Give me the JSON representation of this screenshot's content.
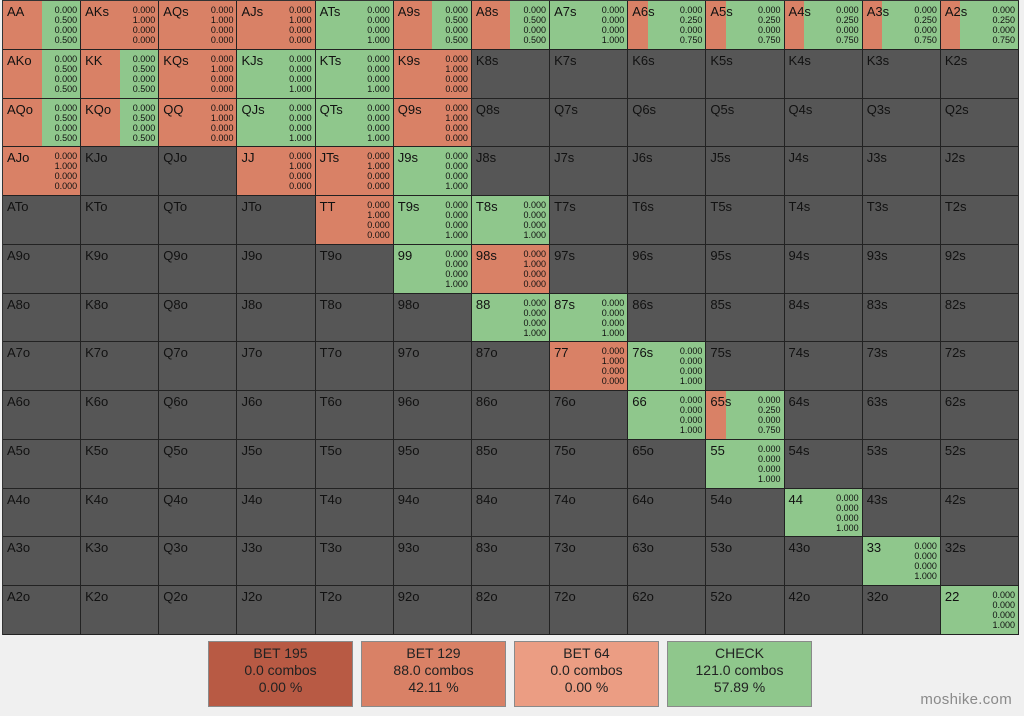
{
  "actions": [
    {
      "label": "BET 195",
      "combos": "0.0 combos",
      "pct": "0.00 %",
      "color": "#b85a44"
    },
    {
      "label": "BET 129",
      "combos": "88.0 combos",
      "pct": "42.11 %",
      "color": "#d98166"
    },
    {
      "label": "BET 64",
      "combos": "0.0 combos",
      "pct": "0.00 %",
      "color": "#eb9d83"
    },
    {
      "label": "CHECK",
      "combos": "121.0 combos",
      "pct": "57.89 %",
      "color": "#8fc78c"
    }
  ],
  "default_cell_color": "#565656",
  "watermark": "moshike.com",
  "grid": [
    [
      {
        "hand": "AA",
        "f": [
          "0.000",
          "0.500",
          "0.000",
          "0.500"
        ]
      },
      {
        "hand": "AKs",
        "f": [
          "0.000",
          "1.000",
          "0.000",
          "0.000"
        ]
      },
      {
        "hand": "AQs",
        "f": [
          "0.000",
          "1.000",
          "0.000",
          "0.000"
        ]
      },
      {
        "hand": "AJs",
        "f": [
          "0.000",
          "1.000",
          "0.000",
          "0.000"
        ]
      },
      {
        "hand": "ATs",
        "f": [
          "0.000",
          "0.000",
          "0.000",
          "1.000"
        ]
      },
      {
        "hand": "A9s",
        "f": [
          "0.000",
          "0.500",
          "0.000",
          "0.500"
        ]
      },
      {
        "hand": "A8s",
        "f": [
          "0.000",
          "0.500",
          "0.000",
          "0.500"
        ]
      },
      {
        "hand": "A7s",
        "f": [
          "0.000",
          "0.000",
          "0.000",
          "1.000"
        ]
      },
      {
        "hand": "A6s",
        "f": [
          "0.000",
          "0.250",
          "0.000",
          "0.750"
        ]
      },
      {
        "hand": "A5s",
        "f": [
          "0.000",
          "0.250",
          "0.000",
          "0.750"
        ]
      },
      {
        "hand": "A4s",
        "f": [
          "0.000",
          "0.250",
          "0.000",
          "0.750"
        ]
      },
      {
        "hand": "A3s",
        "f": [
          "0.000",
          "0.250",
          "0.000",
          "0.750"
        ]
      },
      {
        "hand": "A2s",
        "f": [
          "0.000",
          "0.250",
          "0.000",
          "0.750"
        ]
      }
    ],
    [
      {
        "hand": "AKo",
        "f": [
          "0.000",
          "0.500",
          "0.000",
          "0.500"
        ]
      },
      {
        "hand": "KK",
        "f": [
          "0.000",
          "0.500",
          "0.000",
          "0.500"
        ]
      },
      {
        "hand": "KQs",
        "f": [
          "0.000",
          "1.000",
          "0.000",
          "0.000"
        ]
      },
      {
        "hand": "KJs",
        "f": [
          "0.000",
          "0.000",
          "0.000",
          "1.000"
        ]
      },
      {
        "hand": "KTs",
        "f": [
          "0.000",
          "0.000",
          "0.000",
          "1.000"
        ]
      },
      {
        "hand": "K9s",
        "f": [
          "0.000",
          "1.000",
          "0.000",
          "0.000"
        ]
      },
      {
        "hand": "K8s"
      },
      {
        "hand": "K7s"
      },
      {
        "hand": "K6s"
      },
      {
        "hand": "K5s"
      },
      {
        "hand": "K4s"
      },
      {
        "hand": "K3s"
      },
      {
        "hand": "K2s"
      }
    ],
    [
      {
        "hand": "AQo",
        "f": [
          "0.000",
          "0.500",
          "0.000",
          "0.500"
        ]
      },
      {
        "hand": "KQo",
        "f": [
          "0.000",
          "0.500",
          "0.000",
          "0.500"
        ]
      },
      {
        "hand": "QQ",
        "f": [
          "0.000",
          "1.000",
          "0.000",
          "0.000"
        ]
      },
      {
        "hand": "QJs",
        "f": [
          "0.000",
          "0.000",
          "0.000",
          "1.000"
        ]
      },
      {
        "hand": "QTs",
        "f": [
          "0.000",
          "0.000",
          "0.000",
          "1.000"
        ]
      },
      {
        "hand": "Q9s",
        "f": [
          "0.000",
          "1.000",
          "0.000",
          "0.000"
        ]
      },
      {
        "hand": "Q8s"
      },
      {
        "hand": "Q7s"
      },
      {
        "hand": "Q6s"
      },
      {
        "hand": "Q5s"
      },
      {
        "hand": "Q4s"
      },
      {
        "hand": "Q3s"
      },
      {
        "hand": "Q2s"
      }
    ],
    [
      {
        "hand": "AJo",
        "f": [
          "0.000",
          "1.000",
          "0.000",
          "0.000"
        ]
      },
      {
        "hand": "KJo"
      },
      {
        "hand": "QJo"
      },
      {
        "hand": "JJ",
        "f": [
          "0.000",
          "1.000",
          "0.000",
          "0.000"
        ]
      },
      {
        "hand": "JTs",
        "f": [
          "0.000",
          "1.000",
          "0.000",
          "0.000"
        ]
      },
      {
        "hand": "J9s",
        "f": [
          "0.000",
          "0.000",
          "0.000",
          "1.000"
        ]
      },
      {
        "hand": "J8s"
      },
      {
        "hand": "J7s"
      },
      {
        "hand": "J6s"
      },
      {
        "hand": "J5s"
      },
      {
        "hand": "J4s"
      },
      {
        "hand": "J3s"
      },
      {
        "hand": "J2s"
      }
    ],
    [
      {
        "hand": "ATo"
      },
      {
        "hand": "KTo"
      },
      {
        "hand": "QTo"
      },
      {
        "hand": "JTo"
      },
      {
        "hand": "TT",
        "f": [
          "0.000",
          "1.000",
          "0.000",
          "0.000"
        ]
      },
      {
        "hand": "T9s",
        "f": [
          "0.000",
          "0.000",
          "0.000",
          "1.000"
        ]
      },
      {
        "hand": "T8s",
        "f": [
          "0.000",
          "0.000",
          "0.000",
          "1.000"
        ]
      },
      {
        "hand": "T7s"
      },
      {
        "hand": "T6s"
      },
      {
        "hand": "T5s"
      },
      {
        "hand": "T4s"
      },
      {
        "hand": "T3s"
      },
      {
        "hand": "T2s"
      }
    ],
    [
      {
        "hand": "A9o"
      },
      {
        "hand": "K9o"
      },
      {
        "hand": "Q9o"
      },
      {
        "hand": "J9o"
      },
      {
        "hand": "T9o"
      },
      {
        "hand": "99",
        "f": [
          "0.000",
          "0.000",
          "0.000",
          "1.000"
        ]
      },
      {
        "hand": "98s",
        "f": [
          "0.000",
          "1.000",
          "0.000",
          "0.000"
        ]
      },
      {
        "hand": "97s"
      },
      {
        "hand": "96s"
      },
      {
        "hand": "95s"
      },
      {
        "hand": "94s"
      },
      {
        "hand": "93s"
      },
      {
        "hand": "92s"
      }
    ],
    [
      {
        "hand": "A8o"
      },
      {
        "hand": "K8o"
      },
      {
        "hand": "Q8o"
      },
      {
        "hand": "J8o"
      },
      {
        "hand": "T8o"
      },
      {
        "hand": "98o"
      },
      {
        "hand": "88",
        "f": [
          "0.000",
          "0.000",
          "0.000",
          "1.000"
        ]
      },
      {
        "hand": "87s",
        "f": [
          "0.000",
          "0.000",
          "0.000",
          "1.000"
        ]
      },
      {
        "hand": "86s"
      },
      {
        "hand": "85s"
      },
      {
        "hand": "84s"
      },
      {
        "hand": "83s"
      },
      {
        "hand": "82s"
      }
    ],
    [
      {
        "hand": "A7o"
      },
      {
        "hand": "K7o"
      },
      {
        "hand": "Q7o"
      },
      {
        "hand": "J7o"
      },
      {
        "hand": "T7o"
      },
      {
        "hand": "97o"
      },
      {
        "hand": "87o"
      },
      {
        "hand": "77",
        "f": [
          "0.000",
          "1.000",
          "0.000",
          "0.000"
        ]
      },
      {
        "hand": "76s",
        "f": [
          "0.000",
          "0.000",
          "0.000",
          "1.000"
        ]
      },
      {
        "hand": "75s"
      },
      {
        "hand": "74s"
      },
      {
        "hand": "73s"
      },
      {
        "hand": "72s"
      }
    ],
    [
      {
        "hand": "A6o"
      },
      {
        "hand": "K6o"
      },
      {
        "hand": "Q6o"
      },
      {
        "hand": "J6o"
      },
      {
        "hand": "T6o"
      },
      {
        "hand": "96o"
      },
      {
        "hand": "86o"
      },
      {
        "hand": "76o"
      },
      {
        "hand": "66",
        "f": [
          "0.000",
          "0.000",
          "0.000",
          "1.000"
        ]
      },
      {
        "hand": "65s",
        "f": [
          "0.000",
          "0.250",
          "0.000",
          "0.750"
        ]
      },
      {
        "hand": "64s"
      },
      {
        "hand": "63s"
      },
      {
        "hand": "62s"
      }
    ],
    [
      {
        "hand": "A5o"
      },
      {
        "hand": "K5o"
      },
      {
        "hand": "Q5o"
      },
      {
        "hand": "J5o"
      },
      {
        "hand": "T5o"
      },
      {
        "hand": "95o"
      },
      {
        "hand": "85o"
      },
      {
        "hand": "75o"
      },
      {
        "hand": "65o"
      },
      {
        "hand": "55",
        "f": [
          "0.000",
          "0.000",
          "0.000",
          "1.000"
        ]
      },
      {
        "hand": "54s"
      },
      {
        "hand": "53s"
      },
      {
        "hand": "52s"
      }
    ],
    [
      {
        "hand": "A4o"
      },
      {
        "hand": "K4o"
      },
      {
        "hand": "Q4o"
      },
      {
        "hand": "J4o"
      },
      {
        "hand": "T4o"
      },
      {
        "hand": "94o"
      },
      {
        "hand": "84o"
      },
      {
        "hand": "74o"
      },
      {
        "hand": "64o"
      },
      {
        "hand": "54o"
      },
      {
        "hand": "44",
        "f": [
          "0.000",
          "0.000",
          "0.000",
          "1.000"
        ]
      },
      {
        "hand": "43s"
      },
      {
        "hand": "42s"
      }
    ],
    [
      {
        "hand": "A3o"
      },
      {
        "hand": "K3o"
      },
      {
        "hand": "Q3o"
      },
      {
        "hand": "J3o"
      },
      {
        "hand": "T3o"
      },
      {
        "hand": "93o"
      },
      {
        "hand": "83o"
      },
      {
        "hand": "73o"
      },
      {
        "hand": "63o"
      },
      {
        "hand": "53o"
      },
      {
        "hand": "43o"
      },
      {
        "hand": "33",
        "f": [
          "0.000",
          "0.000",
          "0.000",
          "1.000"
        ]
      },
      {
        "hand": "32s"
      }
    ],
    [
      {
        "hand": "A2o"
      },
      {
        "hand": "K2o"
      },
      {
        "hand": "Q2o"
      },
      {
        "hand": "J2o"
      },
      {
        "hand": "T2o"
      },
      {
        "hand": "92o"
      },
      {
        "hand": "82o"
      },
      {
        "hand": "72o"
      },
      {
        "hand": "62o"
      },
      {
        "hand": "52o"
      },
      {
        "hand": "42o"
      },
      {
        "hand": "32o"
      },
      {
        "hand": "22",
        "f": [
          "0.000",
          "0.000",
          "0.000",
          "1.000"
        ]
      }
    ]
  ]
}
